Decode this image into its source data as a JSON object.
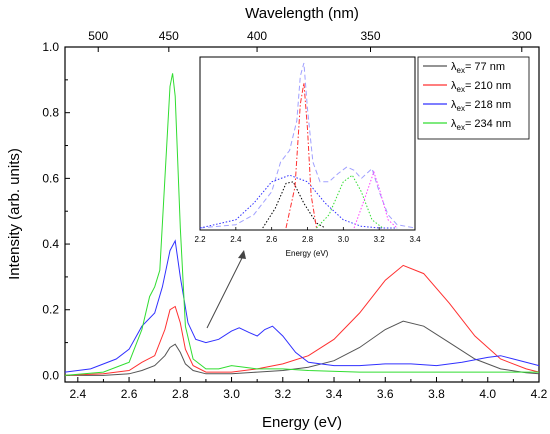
{
  "chart_data": [
    {
      "type": "line",
      "xlabel": "Energy (eV)",
      "ylabel": "Intensity (arb. units)",
      "top_xlabel": "Wavelength (nm)",
      "xlim": [
        2.35,
        4.2
      ],
      "ylim": [
        -0.02,
        1.0
      ],
      "x_ticks": [
        2.4,
        2.6,
        2.8,
        3.0,
        3.2,
        3.4,
        3.6,
        3.8,
        4.0,
        4.2
      ],
      "y_ticks": [
        0.0,
        0.2,
        0.4,
        0.6,
        0.8,
        1.0
      ],
      "top_ticks": [
        500,
        450,
        400,
        350,
        300
      ],
      "grid": false,
      "legend_position": "top-right",
      "legend": [
        {
          "sub": "ex",
          "value": "= 77 nm",
          "color": "#555555"
        },
        {
          "sub": "ex",
          "value": "= 210 nm",
          "color": "#ff3030"
        },
        {
          "sub": "ex",
          "value": "= 218 nm",
          "color": "#3030ff"
        },
        {
          "sub": "ex",
          "value": "= 234 nm",
          "color": "#30dd30"
        }
      ],
      "series": [
        {
          "color": "#555555",
          "x": [
            2.35,
            2.5,
            2.6,
            2.65,
            2.7,
            2.74,
            2.76,
            2.78,
            2.8,
            2.82,
            2.85,
            2.9,
            3.0,
            3.1,
            3.2,
            3.3,
            3.4,
            3.5,
            3.6,
            3.67,
            3.75,
            3.85,
            3.95,
            4.05,
            4.15,
            4.2
          ],
          "y": [
            0.0,
            0.0,
            0.005,
            0.015,
            0.03,
            0.06,
            0.085,
            0.095,
            0.07,
            0.035,
            0.015,
            0.005,
            0.005,
            0.01,
            0.015,
            0.025,
            0.045,
            0.085,
            0.14,
            0.165,
            0.15,
            0.1,
            0.05,
            0.02,
            0.008,
            0.005
          ]
        },
        {
          "color": "#ff3030",
          "x": [
            2.35,
            2.5,
            2.6,
            2.65,
            2.7,
            2.74,
            2.76,
            2.78,
            2.8,
            2.82,
            2.85,
            2.9,
            3.0,
            3.1,
            3.2,
            3.3,
            3.4,
            3.5,
            3.6,
            3.67,
            3.75,
            3.85,
            3.95,
            4.05,
            4.15,
            4.2
          ],
          "y": [
            0.0,
            0.005,
            0.015,
            0.04,
            0.06,
            0.14,
            0.2,
            0.21,
            0.16,
            0.08,
            0.03,
            0.01,
            0.01,
            0.02,
            0.035,
            0.06,
            0.11,
            0.19,
            0.29,
            0.335,
            0.31,
            0.22,
            0.12,
            0.05,
            0.02,
            0.01
          ]
        },
        {
          "color": "#3030ff",
          "x": [
            2.35,
            2.45,
            2.55,
            2.6,
            2.65,
            2.7,
            2.73,
            2.76,
            2.78,
            2.8,
            2.83,
            2.86,
            2.9,
            2.95,
            3.0,
            3.03,
            3.07,
            3.1,
            3.13,
            3.16,
            3.2,
            3.25,
            3.3,
            3.4,
            3.5,
            3.6,
            3.7,
            3.8,
            3.9,
            4.0,
            4.05,
            4.1,
            4.2
          ],
          "y": [
            0.01,
            0.02,
            0.05,
            0.08,
            0.15,
            0.19,
            0.27,
            0.38,
            0.41,
            0.3,
            0.16,
            0.11,
            0.1,
            0.11,
            0.135,
            0.145,
            0.13,
            0.12,
            0.14,
            0.15,
            0.12,
            0.07,
            0.04,
            0.03,
            0.03,
            0.035,
            0.035,
            0.03,
            0.04,
            0.055,
            0.06,
            0.05,
            0.03
          ]
        },
        {
          "color": "#30dd30",
          "x": [
            2.35,
            2.5,
            2.6,
            2.65,
            2.68,
            2.7,
            2.72,
            2.74,
            2.76,
            2.77,
            2.78,
            2.8,
            2.82,
            2.85,
            2.9,
            2.95,
            3.0,
            3.05,
            3.1,
            3.15,
            3.2,
            3.3,
            3.5,
            3.7,
            3.9,
            4.1,
            4.2
          ],
          "y": [
            0.0,
            0.01,
            0.04,
            0.14,
            0.24,
            0.27,
            0.32,
            0.6,
            0.88,
            0.92,
            0.85,
            0.45,
            0.15,
            0.05,
            0.02,
            0.02,
            0.03,
            0.025,
            0.02,
            0.02,
            0.02,
            0.015,
            0.01,
            0.01,
            0.01,
            0.01,
            0.01
          ]
        }
      ]
    },
    {
      "type": "line",
      "xlabel": "Energy (eV)",
      "xlim": [
        2.2,
        3.4
      ],
      "x_ticks": [
        2.2,
        2.4,
        2.6,
        2.8,
        3.0,
        3.2,
        3.4
      ],
      "ylim": [
        0,
        1.0
      ],
      "grid": false,
      "series": [
        {
          "color": "#a0a0ff",
          "style": "dashed",
          "x": [
            2.2,
            2.4,
            2.5,
            2.6,
            2.65,
            2.7,
            2.74,
            2.76,
            2.78,
            2.8,
            2.83,
            2.87,
            2.92,
            2.97,
            3.02,
            3.06,
            3.1,
            3.13,
            3.16,
            3.2,
            3.25,
            3.3,
            3.4
          ],
          "y": [
            0.0,
            0.02,
            0.08,
            0.22,
            0.4,
            0.47,
            0.65,
            0.92,
            1.0,
            0.72,
            0.4,
            0.28,
            0.28,
            0.33,
            0.37,
            0.35,
            0.3,
            0.33,
            0.36,
            0.22,
            0.08,
            0.02,
            0.0
          ]
        },
        {
          "color": "#3030ff",
          "style": "dotted",
          "x": [
            2.2,
            2.4,
            2.5,
            2.6,
            2.7,
            2.8,
            2.9,
            3.0,
            3.1,
            3.2,
            3.3
          ],
          "y": [
            0.0,
            0.05,
            0.15,
            0.28,
            0.32,
            0.28,
            0.15,
            0.05,
            0.01,
            0.0,
            0.0
          ]
        },
        {
          "color": "#000000",
          "style": "dotted",
          "x": [
            2.55,
            2.62,
            2.68,
            2.72,
            2.78,
            2.85,
            2.9
          ],
          "y": [
            0.0,
            0.12,
            0.27,
            0.28,
            0.15,
            0.03,
            0.0
          ]
        },
        {
          "color": "#ff3030",
          "style": "dashdot",
          "x": [
            2.68,
            2.73,
            2.76,
            2.78,
            2.8,
            2.82,
            2.85
          ],
          "y": [
            0.0,
            0.25,
            0.75,
            0.88,
            0.6,
            0.2,
            0.0
          ]
        },
        {
          "color": "#30dd30",
          "style": "dotted",
          "x": [
            2.85,
            2.92,
            3.0,
            3.05,
            3.1,
            3.16,
            3.22
          ],
          "y": [
            0.0,
            0.08,
            0.28,
            0.32,
            0.22,
            0.05,
            0.0
          ]
        },
        {
          "color": "#ff40ff",
          "style": "dotted",
          "x": [
            3.06,
            3.12,
            3.17,
            3.2,
            3.25,
            3.3
          ],
          "y": [
            0.0,
            0.18,
            0.34,
            0.24,
            0.05,
            0.0
          ]
        }
      ]
    }
  ]
}
